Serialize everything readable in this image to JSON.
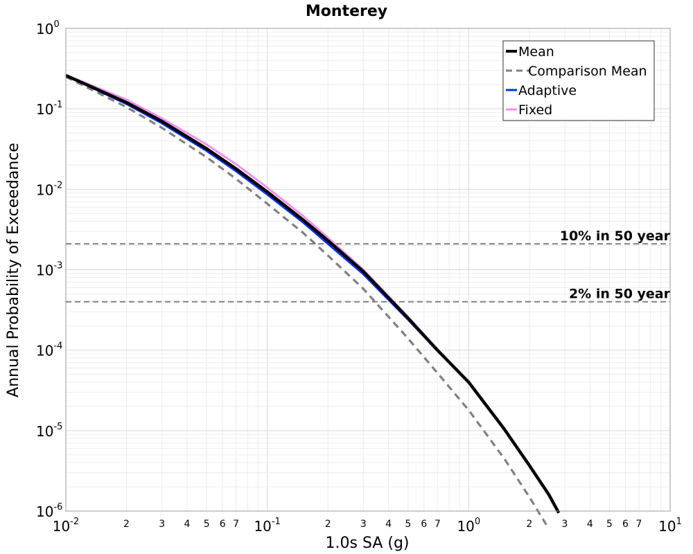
{
  "chart_data": {
    "type": "line",
    "title": "Monterey",
    "xlabel": "1.0s SA (g)",
    "ylabel": "Annual Probability of Exceedance",
    "xscale": "log",
    "yscale": "log",
    "xlim": [
      0.01,
      10
    ],
    "ylim": [
      1e-06,
      1
    ],
    "grid": true,
    "legend_position": "top-right",
    "x_major_ticks": [
      {
        "base": "10",
        "exp": "-2"
      },
      {
        "base": "10",
        "exp": "-1"
      },
      {
        "base": "10",
        "exp": "0"
      },
      {
        "base": "10",
        "exp": "1"
      }
    ],
    "y_major_ticks": [
      {
        "base": "10",
        "exp": "0"
      },
      {
        "base": "10",
        "exp": "-1"
      },
      {
        "base": "10",
        "exp": "-2"
      },
      {
        "base": "10",
        "exp": "-3"
      },
      {
        "base": "10",
        "exp": "-4"
      },
      {
        "base": "10",
        "exp": "-5"
      },
      {
        "base": "10",
        "exp": "-6"
      }
    ],
    "x_minor_tick_labels": [
      "2",
      "3",
      "4",
      "5",
      "6",
      "7"
    ],
    "reference_lines": [
      {
        "label": "10% in 50 year",
        "y": 0.0021
      },
      {
        "label": "2% in 50 year",
        "y": 0.0004
      }
    ],
    "series": [
      {
        "name": "Mean",
        "color": "#000000",
        "style": "solid",
        "x": [
          0.01,
          0.02,
          0.03,
          0.05,
          0.07,
          0.1,
          0.15,
          0.2,
          0.3,
          0.5,
          0.7,
          1.0,
          1.5,
          2.0,
          2.5,
          2.8
        ],
        "y": [
          0.26,
          0.12,
          0.07,
          0.032,
          0.018,
          0.0093,
          0.0042,
          0.0023,
          0.00095,
          0.00025,
          0.0001,
          4e-05,
          1.05e-05,
          3.7e-06,
          1.6e-06,
          9.5e-07
        ]
      },
      {
        "name": "Comparison Mean",
        "color": "#808080",
        "style": "dashed",
        "x": [
          0.01,
          0.02,
          0.03,
          0.05,
          0.07,
          0.1,
          0.15,
          0.2,
          0.3,
          0.5,
          0.7,
          1.0,
          1.5,
          2.0,
          2.5
        ],
        "y": [
          0.25,
          0.105,
          0.058,
          0.025,
          0.0135,
          0.0066,
          0.0029,
          0.0015,
          0.00058,
          0.00014,
          5.2e-05,
          1.8e-05,
          4.5e-06,
          1.5e-06,
          6e-07
        ]
      },
      {
        "name": "Adaptive",
        "color": "#0033ee",
        "style": "solid",
        "x": [
          0.01,
          0.02,
          0.03,
          0.05,
          0.07,
          0.1,
          0.15,
          0.2,
          0.3,
          0.5,
          0.7,
          1.0
        ],
        "y": [
          0.26,
          0.115,
          0.066,
          0.03,
          0.0168,
          0.0086,
          0.0039,
          0.0021,
          0.00088,
          0.00024,
          9.8e-05,
          4e-05
        ]
      },
      {
        "name": "Fixed",
        "color": "#f28ff2",
        "style": "solid",
        "x": [
          0.01,
          0.02,
          0.03,
          0.05,
          0.07,
          0.1,
          0.15,
          0.2,
          0.3,
          0.5,
          0.7,
          1.0
        ],
        "y": [
          0.265,
          0.13,
          0.076,
          0.036,
          0.0205,
          0.0105,
          0.0047,
          0.0025,
          0.001,
          0.00026,
          0.000101,
          4e-05
        ]
      }
    ]
  }
}
